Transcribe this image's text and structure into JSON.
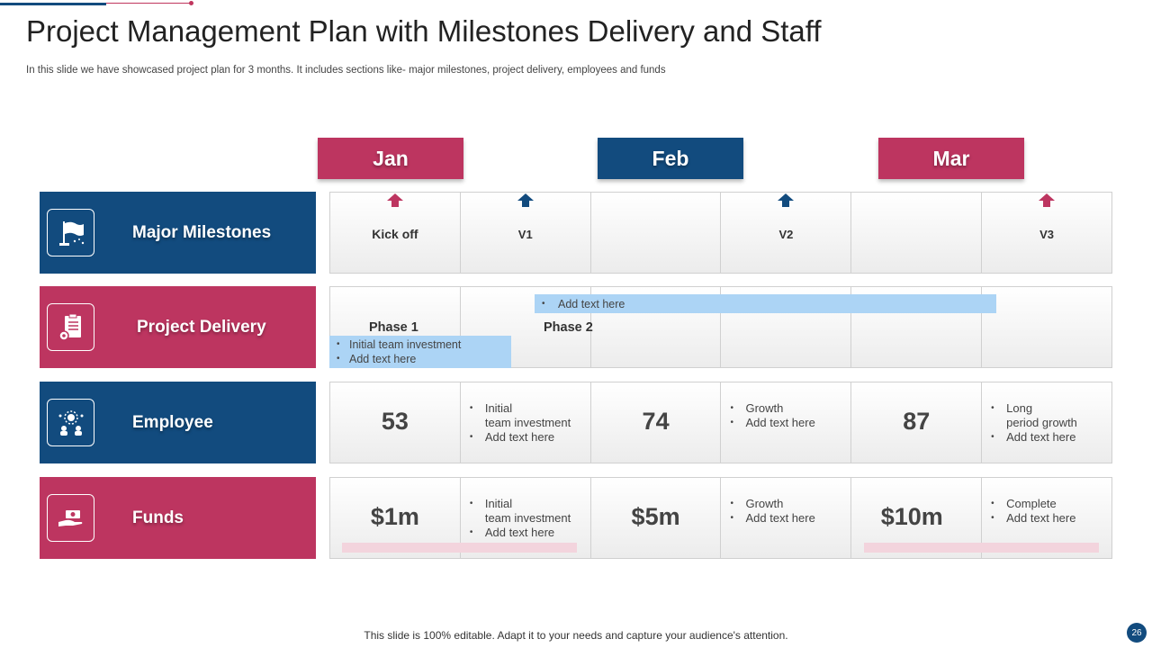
{
  "colors": {
    "brand_blue": "#124b7e",
    "brand_pink": "#bd3560",
    "bar_blue": "#acd4f5",
    "band_pink": "#f3d4dd"
  },
  "title": "Project Management Plan with Milestones Delivery and Staff",
  "subtitle": "In this slide we have showcased project plan for 3 months. It includes sections like- major milestones, project delivery, employees and funds",
  "months": [
    "Jan",
    "Feb",
    "Mar"
  ],
  "rows": {
    "milestones": {
      "label": "Major Milestones",
      "icon": "flag-icon"
    },
    "delivery": {
      "label": "Project Delivery",
      "icon": "clipboard-gear-icon"
    },
    "employee": {
      "label": "Employee",
      "icon": "team-icon"
    },
    "funds": {
      "label": "Funds",
      "icon": "hand-money-icon"
    }
  },
  "milestones": [
    "Kick off",
    "V1",
    "V2",
    "V3"
  ],
  "delivery": {
    "phase1": "Phase 1",
    "phase2": "Phase 2",
    "phase1_bullets": [
      "Initial team investment",
      "Add text here"
    ],
    "phase2_bullets": [
      "Add text here"
    ]
  },
  "employee": {
    "values": [
      "53",
      "74",
      "87"
    ],
    "notes": [
      [
        "Initial",
        "team investment",
        "Add text here"
      ],
      [
        "Growth",
        "Add text here"
      ],
      [
        "Long",
        "period growth",
        "Add text here"
      ]
    ]
  },
  "funds": {
    "values": [
      "$1m",
      "$5m",
      "$10m"
    ],
    "notes": [
      [
        "Initial",
        "team investment",
        "Add text here"
      ],
      [
        "Growth",
        "Add text here"
      ],
      [
        "Complete",
        "Add text here"
      ]
    ]
  },
  "footer": "This slide is 100% editable. Adapt it to your needs and capture your audience's attention.",
  "page_number": "26"
}
